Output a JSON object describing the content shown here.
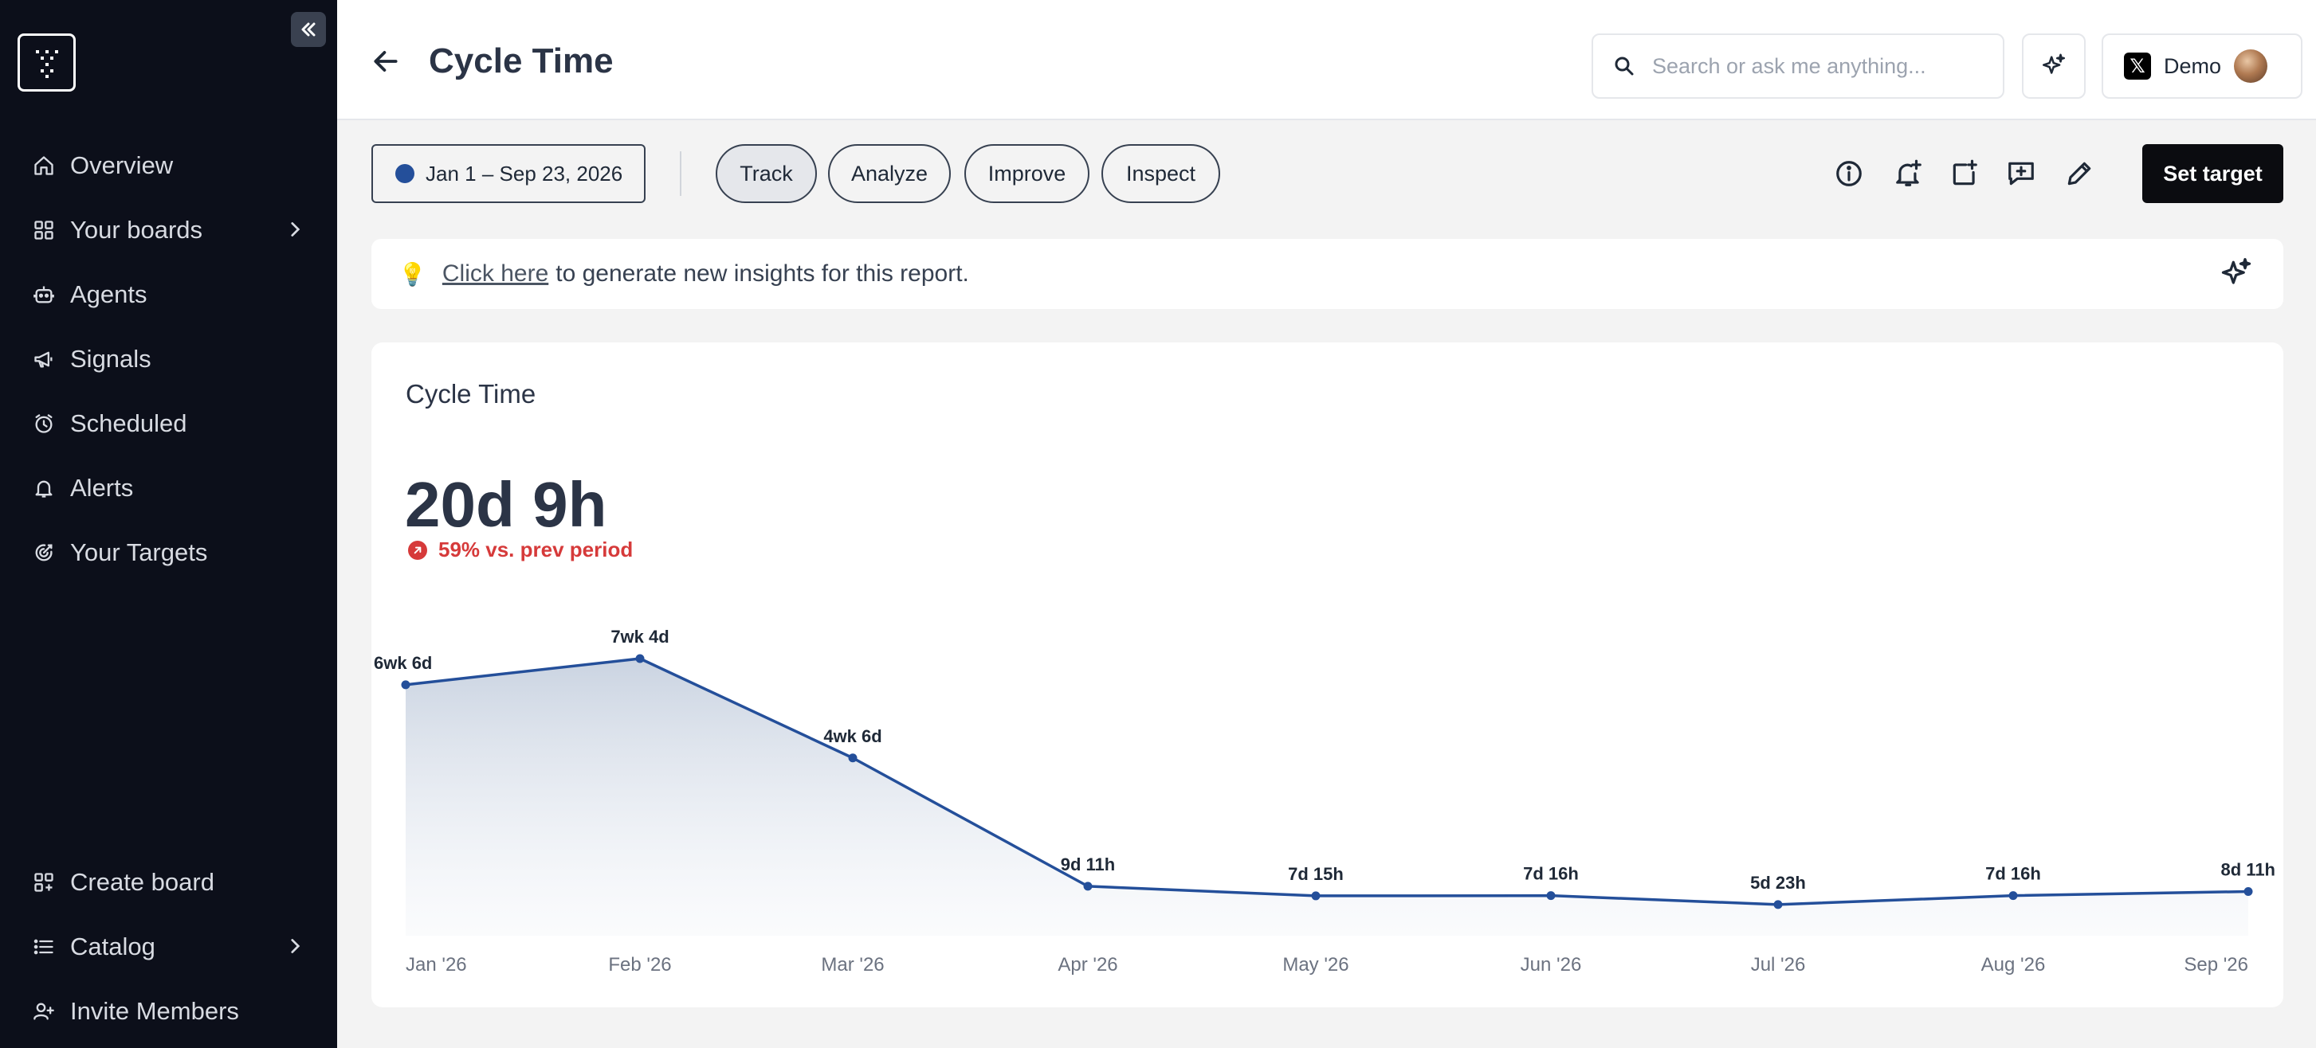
{
  "sidebar": {
    "items": [
      {
        "label": "Overview",
        "icon": "home-icon"
      },
      {
        "label": "Your boards",
        "icon": "grid-icon",
        "has_chevron": true
      },
      {
        "label": "Agents",
        "icon": "robot-icon"
      },
      {
        "label": "Signals",
        "icon": "megaphone-icon"
      },
      {
        "label": "Scheduled",
        "icon": "alarm-clock-icon"
      },
      {
        "label": "Alerts",
        "icon": "bell-icon"
      },
      {
        "label": "Your Targets",
        "icon": "target-icon"
      }
    ],
    "bottom_items": [
      {
        "label": "Create board",
        "icon": "add-board-icon"
      },
      {
        "label": "Catalog",
        "icon": "list-icon",
        "has_chevron": true
      },
      {
        "label": "Invite Members",
        "icon": "add-user-icon"
      }
    ]
  },
  "header": {
    "title": "Cycle Time",
    "search_placeholder": "Search or ask me anything...",
    "account_name": "Demo"
  },
  "toolbar": {
    "date_range": "Jan 1 – Sep 23, 2026",
    "tabs": [
      "Track",
      "Analyze",
      "Improve",
      "Inspect"
    ],
    "active_tab": "Track",
    "set_target_label": "Set target"
  },
  "insights": {
    "link_text": "Click here",
    "text": "to generate new insights for this report."
  },
  "card": {
    "title": "Cycle Time",
    "value": "20d 9h",
    "change": "59% vs. prev period"
  },
  "colors": {
    "line": "#244f9a",
    "negative": "#d63a3a",
    "sidebar_bg": "#0c0f1a"
  },
  "chart_data": {
    "type": "area",
    "categories": [
      "Jan '26",
      "Feb '26",
      "Mar '26",
      "Apr '26",
      "May '26",
      "Jun '26",
      "Jul '26",
      "Aug '26",
      "Sep '26"
    ],
    "values_hours": [
      1152,
      1272,
      816,
      227,
      183,
      184,
      143,
      184,
      203
    ],
    "labels": [
      "6wk 6d",
      "7wk 4d",
      "4wk 6d",
      "9d 11h",
      "7d 15h",
      "7d 16h",
      "5d 23h",
      "7d 16h",
      "8d 11h"
    ],
    "unit": "hours",
    "ylim": [
      0,
      1272
    ],
    "grid": false,
    "legend": "none"
  }
}
